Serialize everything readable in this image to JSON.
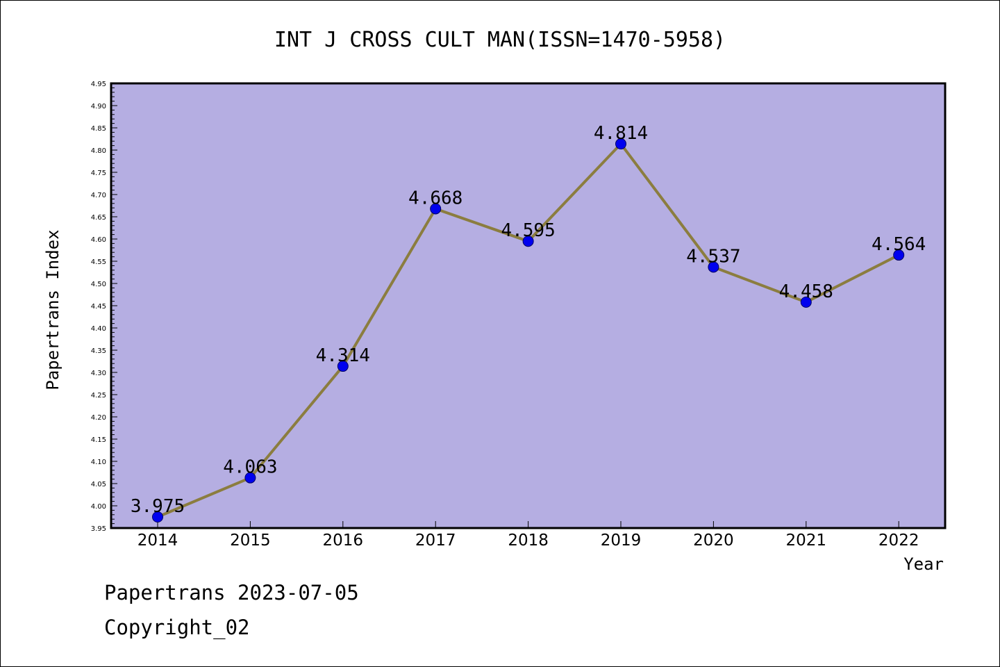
{
  "chart_data": {
    "type": "line",
    "title": "INT J CROSS CULT MAN(ISSN=1470-5958)",
    "xlabel": "Year",
    "ylabel": "Papertrans Index",
    "ylim": [
      3.95,
      4.95
    ],
    "y_ticks": [
      "3.95",
      "4.00",
      "4.05",
      "4.10",
      "4.15",
      "4.20",
      "4.25",
      "4.30",
      "4.35",
      "4.40",
      "4.45",
      "4.50",
      "4.55",
      "4.60",
      "4.65",
      "4.70",
      "4.75",
      "4.80",
      "4.85",
      "4.90",
      "4.95"
    ],
    "categories": [
      "2014",
      "2015",
      "2016",
      "2017",
      "2018",
      "2019",
      "2020",
      "2021",
      "2022"
    ],
    "series": [
      {
        "values": [
          3.975,
          4.063,
          4.314,
          4.668,
          4.595,
          4.814,
          4.537,
          4.458,
          4.564
        ],
        "labels": [
          "3.975",
          "4.063",
          "4.314",
          "4.668",
          "4.595",
          "4.814",
          "4.537",
          "4.458",
          "4.564"
        ]
      }
    ],
    "grid": false,
    "colors": {
      "plot_background": "#b5aee2",
      "line": "#8b7d3f",
      "marker": "#0000ee",
      "marker_edge": "#000066"
    }
  },
  "footer": {
    "source": "Papertrans 2023-07-05",
    "copyright": "Copyright_02"
  }
}
